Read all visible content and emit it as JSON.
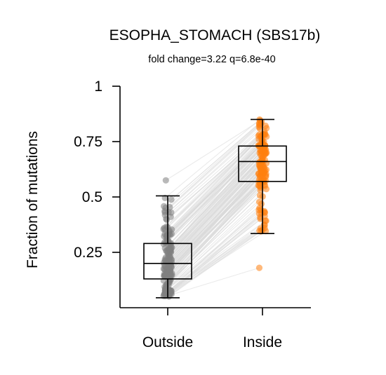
{
  "chart_data": {
    "type": "box-strip-paired",
    "title": "ESOPHA_STOMACH (SBS17b)",
    "subtitle": "fold change=3.22 q=6.8e-40",
    "xlabel": "",
    "ylabel": "Fraction of mutations",
    "categories": [
      "Outside",
      "Inside"
    ],
    "ylim": [
      0,
      1
    ],
    "yticks": [
      0.25,
      0.5,
      0.75,
      1
    ],
    "ytick_labels": [
      "0.25",
      "0.5",
      "0.75",
      "1"
    ],
    "grid": false,
    "legend": "none",
    "colors": {
      "Outside": "#808080",
      "Inside": "#ff7f0e",
      "pair_line": "#d9d9d9",
      "box": "#000000"
    },
    "series": [
      {
        "category": "Outside",
        "box": {
          "whisker_low": 0.045,
          "q1": 0.13,
          "median": 0.2,
          "q3": 0.29,
          "whisker_high": 0.505
        },
        "outliers": [
          0.575
        ]
      },
      {
        "category": "Inside",
        "box": {
          "whisker_low": 0.335,
          "q1": 0.57,
          "median": 0.66,
          "q3": 0.73,
          "whisker_high": 0.85
        },
        "outliers": [
          0.18
        ]
      }
    ],
    "n_pairs": 150
  }
}
